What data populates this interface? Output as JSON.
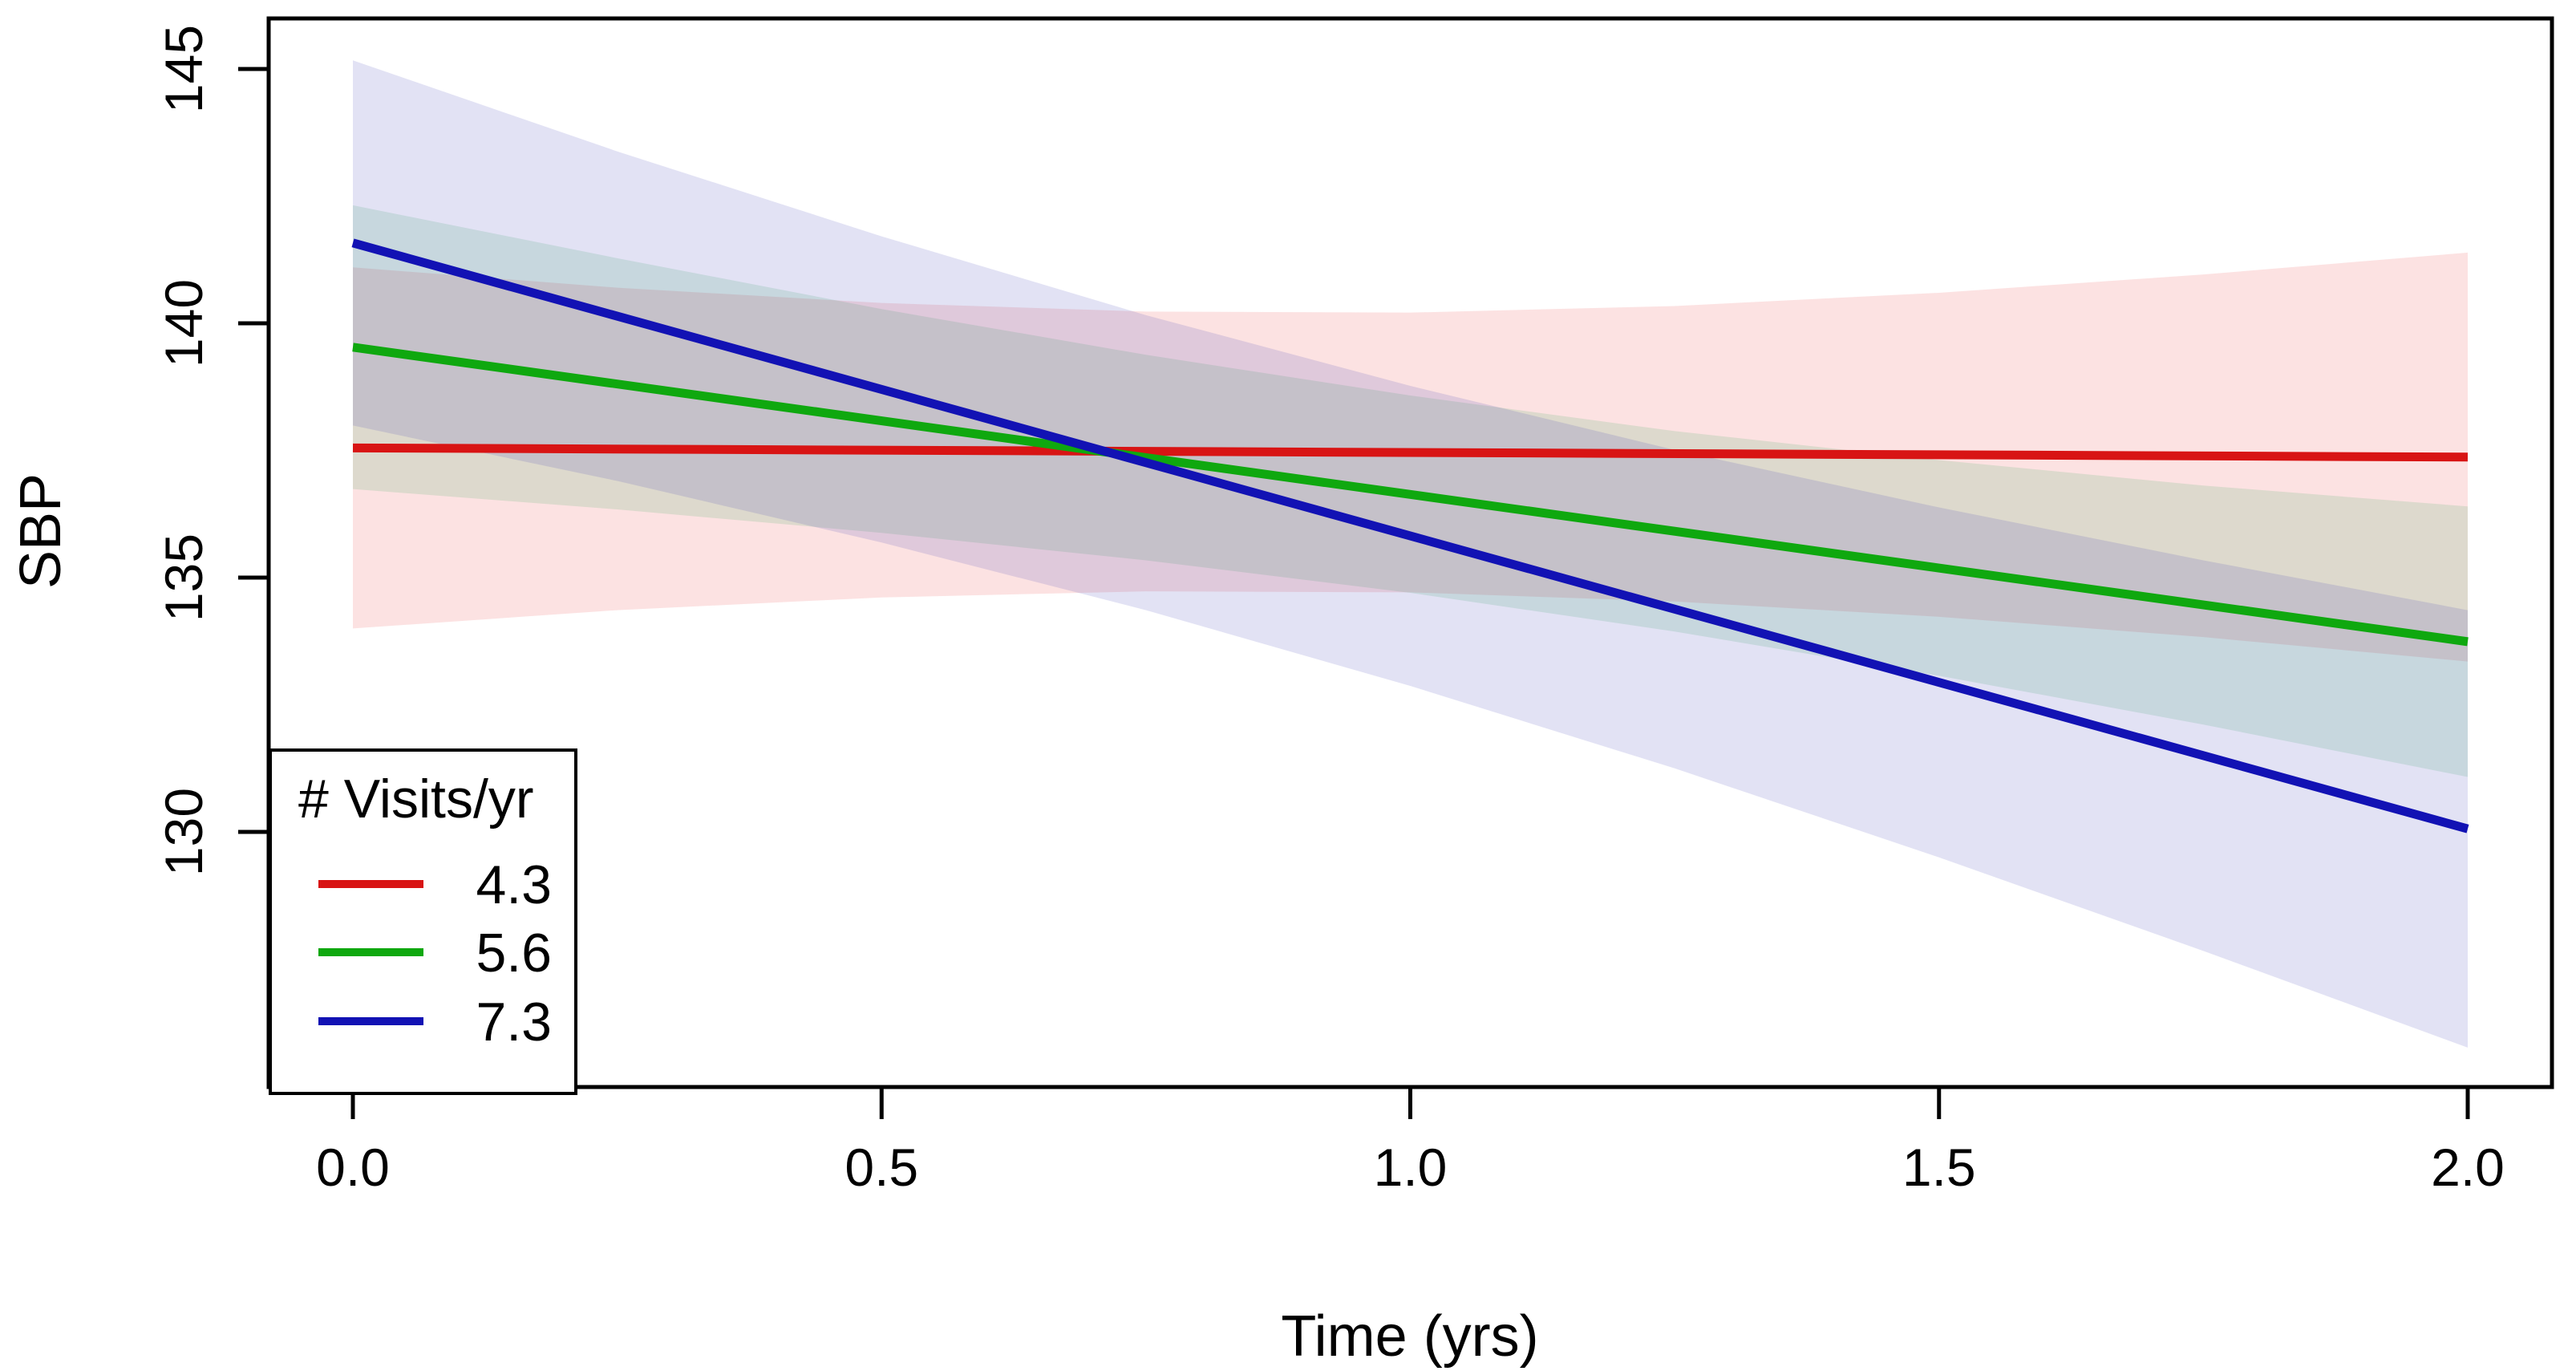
{
  "chart_data": {
    "type": "line",
    "title": "",
    "xlabel": "Time (yrs)",
    "ylabel": "SBP",
    "xlim": [
      0.0,
      2.0
    ],
    "ylim": [
      125,
      146
    ],
    "x_ticks": [
      0.0,
      0.5,
      1.0,
      1.5,
      2.0
    ],
    "x_tick_labels": [
      "0.0",
      "0.5",
      "1.0",
      "1.5",
      "2.0"
    ],
    "y_ticks": [
      130,
      135,
      140,
      145
    ],
    "y_tick_labels": [
      "130",
      "135",
      "140",
      "145"
    ],
    "grid": "off",
    "legend": {
      "title": "# Visits/yr",
      "position": "bottom-left",
      "entries": [
        {
          "label": "4.3",
          "color": "#D81414"
        },
        {
          "label": "5.6",
          "color": "#0FA80F"
        },
        {
          "label": "7.3",
          "color": "#1212B4"
        }
      ]
    },
    "band_x": [
      0,
      0.25,
      0.5,
      0.75,
      1.0,
      1.25,
      1.5,
      1.75,
      2.0
    ],
    "series": [
      {
        "name": "4.3",
        "line_color": "#D81414",
        "band_fill": "rgba(235,60,60,0.15)",
        "x": [
          0,
          2
        ],
        "y": [
          137.55,
          137.37
        ],
        "band_upper": [
          141.1,
          140.7,
          140.4,
          140.23,
          140.21,
          140.34,
          140.6,
          140.96,
          141.39
        ],
        "band_lower": [
          134.0,
          134.36,
          134.61,
          134.73,
          134.71,
          134.53,
          134.23,
          133.83,
          133.35
        ]
      },
      {
        "name": "5.6",
        "line_color": "#0FA80F",
        "band_fill": "rgba(50,170,90,0.15)",
        "x": [
          0,
          2
        ],
        "y": [
          139.53,
          133.74
        ],
        "band_upper": [
          142.32,
          141.28,
          140.28,
          139.38,
          138.58,
          137.88,
          137.31,
          136.81,
          136.4
        ],
        "band_lower": [
          136.74,
          136.34,
          135.88,
          135.34,
          134.7,
          133.94,
          133.07,
          132.11,
          131.08
        ]
      },
      {
        "name": "7.3",
        "line_color": "#1212B4",
        "band_fill": "rgba(60,60,180,0.15)",
        "x": [
          0,
          2
        ],
        "y": [
          141.58,
          130.06
        ],
        "band_upper": [
          145.17,
          143.38,
          141.71,
          140.16,
          138.77,
          137.51,
          136.38,
          135.34,
          134.36
        ],
        "band_lower": [
          137.99,
          136.9,
          135.69,
          134.36,
          132.87,
          131.25,
          129.5,
          127.66,
          125.76
        ]
      }
    ]
  }
}
